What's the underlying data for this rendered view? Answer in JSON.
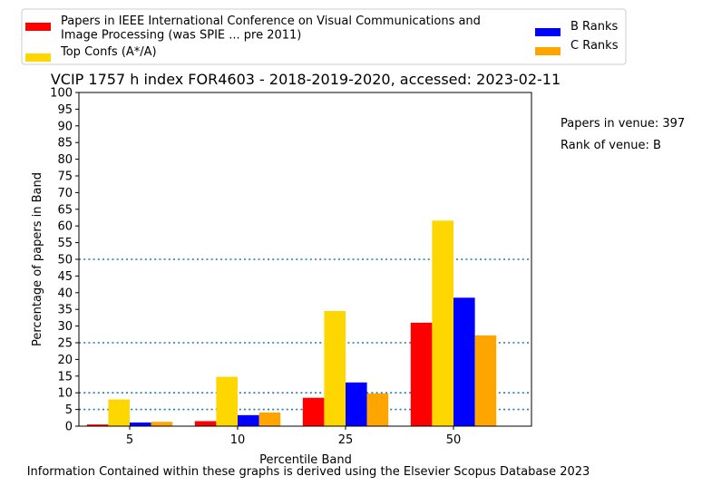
{
  "chart_data": {
    "type": "bar",
    "title": "VCIP 1757 h index FOR4603 - 2018-2019-2020, accessed: 2023-02-11",
    "xlabel": "Percentile Band",
    "ylabel": "Percentage of papers in Band",
    "categories": [
      "5",
      "10",
      "25",
      "50"
    ],
    "ylim": [
      0,
      100
    ],
    "yticks": [
      0,
      5,
      10,
      15,
      20,
      25,
      30,
      35,
      40,
      45,
      50,
      55,
      60,
      65,
      70,
      75,
      80,
      85,
      90,
      95,
      100
    ],
    "reference_lines": [
      5,
      10,
      25,
      50
    ],
    "grid": false,
    "legend_position": "top",
    "series": [
      {
        "name": "Papers in IEEE International Conference on Visual Communications and Image Processing (was SPIE ... pre 2011)",
        "legend_lines": [
          "Papers in IEEE International Conference on Visual Communications and",
          "Image Processing (was SPIE ... pre 2011)"
        ],
        "color": "#ff0000",
        "values": [
          0.5,
          1.5,
          8.5,
          31
        ]
      },
      {
        "name": "Top Confs (A*/A)",
        "legend_lines": [
          "Top Confs (A*/A)"
        ],
        "color": "#ffd700",
        "values": [
          8,
          14.8,
          34.5,
          61.6
        ]
      },
      {
        "name": "B Ranks",
        "legend_lines": [
          "B Ranks"
        ],
        "color": "#0000ff",
        "values": [
          1.1,
          3.3,
          13.1,
          38.5
        ]
      },
      {
        "name": "C Ranks",
        "legend_lines": [
          "C Ranks"
        ],
        "color": "#ffa500",
        "values": [
          1.3,
          4.1,
          9.8,
          27.2
        ]
      }
    ],
    "annotations": [
      "Papers in venue: 397",
      "Rank of venue: B"
    ],
    "footer": "Information Contained within these graphs is derived using the Elsevier Scopus Database 2023"
  }
}
